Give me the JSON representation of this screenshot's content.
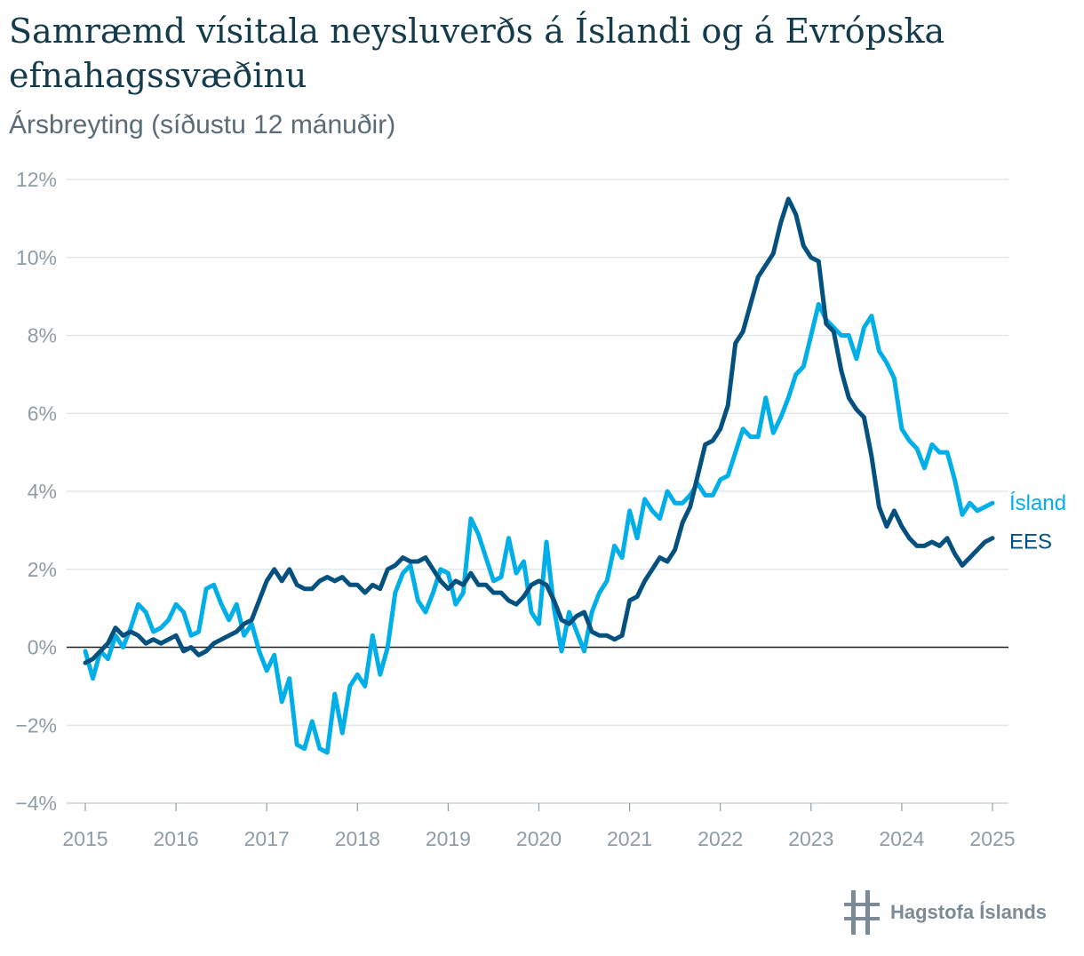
{
  "title": "Samræmd vísitala neysluverðs á Íslandi og á Evrópska efnahagssvæðinu",
  "subtitle": "Ársbreyting (síðustu 12 mánuðir)",
  "logo_text": "Hagstofa Íslands",
  "chart_data": {
    "type": "line",
    "title": "Samræmd vísitala neysluverðs á Íslandi og á Evrópska efnahagssvæðinu",
    "subtitle": "Ársbreyting (síðustu 12 mánuðir)",
    "x_start": "2015-01",
    "x_end": "2025-01",
    "x_ticks": [
      "2015",
      "2016",
      "2017",
      "2018",
      "2019",
      "2020",
      "2021",
      "2022",
      "2023",
      "2024",
      "2025"
    ],
    "y_ticks": [
      "12%",
      "10%",
      "8%",
      "6%",
      "4%",
      "2%",
      "0%",
      "−2%",
      "−4%"
    ],
    "y_tick_values": [
      12,
      10,
      8,
      6,
      4,
      2,
      0,
      -2,
      -4
    ],
    "ylim": [
      -4,
      12
    ],
    "grid": true,
    "legend": "inline at line ends (right)",
    "series": [
      {
        "name": "Ísland",
        "color": "#00aee8",
        "values": [
          -0.1,
          -0.8,
          -0.1,
          -0.3,
          0.3,
          0.0,
          0.5,
          1.1,
          0.9,
          0.4,
          0.5,
          0.7,
          1.1,
          0.9,
          0.3,
          0.4,
          1.5,
          1.6,
          1.1,
          0.7,
          1.1,
          0.3,
          0.6,
          -0.1,
          -0.6,
          -0.2,
          -1.4,
          -0.8,
          -2.5,
          -2.6,
          -1.9,
          -2.6,
          -2.7,
          -1.2,
          -2.2,
          -1.0,
          -0.7,
          -1.0,
          0.3,
          -0.7,
          0.0,
          1.4,
          1.9,
          2.1,
          1.2,
          0.9,
          1.4,
          2.0,
          1.9,
          1.1,
          1.4,
          3.3,
          2.9,
          2.3,
          1.7,
          1.8,
          2.8,
          1.9,
          2.2,
          0.9,
          0.6,
          2.7,
          1.0,
          -0.1,
          0.9,
          0.4,
          -0.1,
          0.9,
          1.4,
          1.7,
          2.6,
          2.3,
          3.5,
          2.8,
          3.8,
          3.5,
          3.3,
          4.0,
          3.7,
          3.7,
          3.9,
          4.2,
          3.9,
          3.9,
          4.3,
          4.4,
          5.0,
          5.6,
          5.4,
          5.4,
          6.4,
          5.5,
          5.9,
          6.4,
          7.0,
          7.2,
          8.0,
          8.8,
          8.4,
          8.2,
          8.0,
          8.0,
          7.4,
          8.2,
          8.5,
          7.6,
          7.3,
          6.9,
          5.6,
          5.3,
          5.1,
          4.6,
          5.2,
          5.0,
          5.0,
          4.3,
          3.4,
          3.7,
          3.5,
          3.6,
          3.7
        ]
      },
      {
        "name": "EES",
        "color": "#04517f",
        "values": [
          -0.4,
          -0.3,
          -0.1,
          0.1,
          0.5,
          0.3,
          0.4,
          0.3,
          0.1,
          0.2,
          0.1,
          0.2,
          0.3,
          -0.1,
          0.0,
          -0.2,
          -0.1,
          0.1,
          0.2,
          0.3,
          0.4,
          0.6,
          0.7,
          1.2,
          1.7,
          2.0,
          1.7,
          2.0,
          1.6,
          1.5,
          1.5,
          1.7,
          1.8,
          1.7,
          1.8,
          1.6,
          1.6,
          1.4,
          1.6,
          1.5,
          2.0,
          2.1,
          2.3,
          2.2,
          2.2,
          2.3,
          2.0,
          1.7,
          1.5,
          1.7,
          1.6,
          1.9,
          1.6,
          1.6,
          1.4,
          1.4,
          1.2,
          1.1,
          1.3,
          1.6,
          1.7,
          1.6,
          1.2,
          0.7,
          0.6,
          0.8,
          0.9,
          0.4,
          0.3,
          0.3,
          0.2,
          0.3,
          1.2,
          1.3,
          1.7,
          2.0,
          2.3,
          2.2,
          2.5,
          3.2,
          3.6,
          4.4,
          5.2,
          5.3,
          5.6,
          6.2,
          7.8,
          8.1,
          8.8,
          9.5,
          9.8,
          10.1,
          10.9,
          11.5,
          11.1,
          10.3,
          10.0,
          9.9,
          8.3,
          8.1,
          7.1,
          6.4,
          6.1,
          5.9,
          4.9,
          3.6,
          3.1,
          3.5,
          3.1,
          2.8,
          2.6,
          2.6,
          2.7,
          2.6,
          2.8,
          2.4,
          2.1,
          2.3,
          2.5,
          2.7,
          2.8
        ]
      }
    ]
  }
}
